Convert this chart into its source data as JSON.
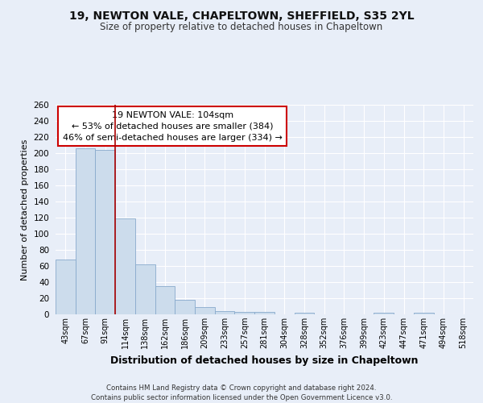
{
  "title_line1": "19, NEWTON VALE, CHAPELTOWN, SHEFFIELD, S35 2YL",
  "title_line2": "Size of property relative to detached houses in Chapeltown",
  "xlabel": "Distribution of detached houses by size in Chapeltown",
  "ylabel": "Number of detached properties",
  "bin_labels": [
    "43sqm",
    "67sqm",
    "91sqm",
    "114sqm",
    "138sqm",
    "162sqm",
    "186sqm",
    "209sqm",
    "233sqm",
    "257sqm",
    "281sqm",
    "304sqm",
    "328sqm",
    "352sqm",
    "376sqm",
    "399sqm",
    "423sqm",
    "447sqm",
    "471sqm",
    "494sqm",
    "518sqm"
  ],
  "bar_heights": [
    68,
    206,
    204,
    119,
    62,
    35,
    18,
    9,
    4,
    3,
    3,
    0,
    2,
    0,
    0,
    0,
    2,
    0,
    2,
    0,
    0
  ],
  "bar_color": "#ccdcec",
  "bar_edge_color": "#88aacc",
  "annotation_text": "19 NEWTON VALE: 104sqm\n← 53% of detached houses are smaller (384)\n46% of semi-detached houses are larger (334) →",
  "red_line_x": 3.0,
  "ylim": [
    0,
    260
  ],
  "yticks": [
    0,
    20,
    40,
    60,
    80,
    100,
    120,
    140,
    160,
    180,
    200,
    220,
    240,
    260
  ],
  "footer_text": "Contains HM Land Registry data © Crown copyright and database right 2024.\nContains public sector information licensed under the Open Government Licence v3.0.",
  "bg_color": "#e8eef8",
  "plot_bg_color": "#e8eef8",
  "grid_color": "#ffffff"
}
